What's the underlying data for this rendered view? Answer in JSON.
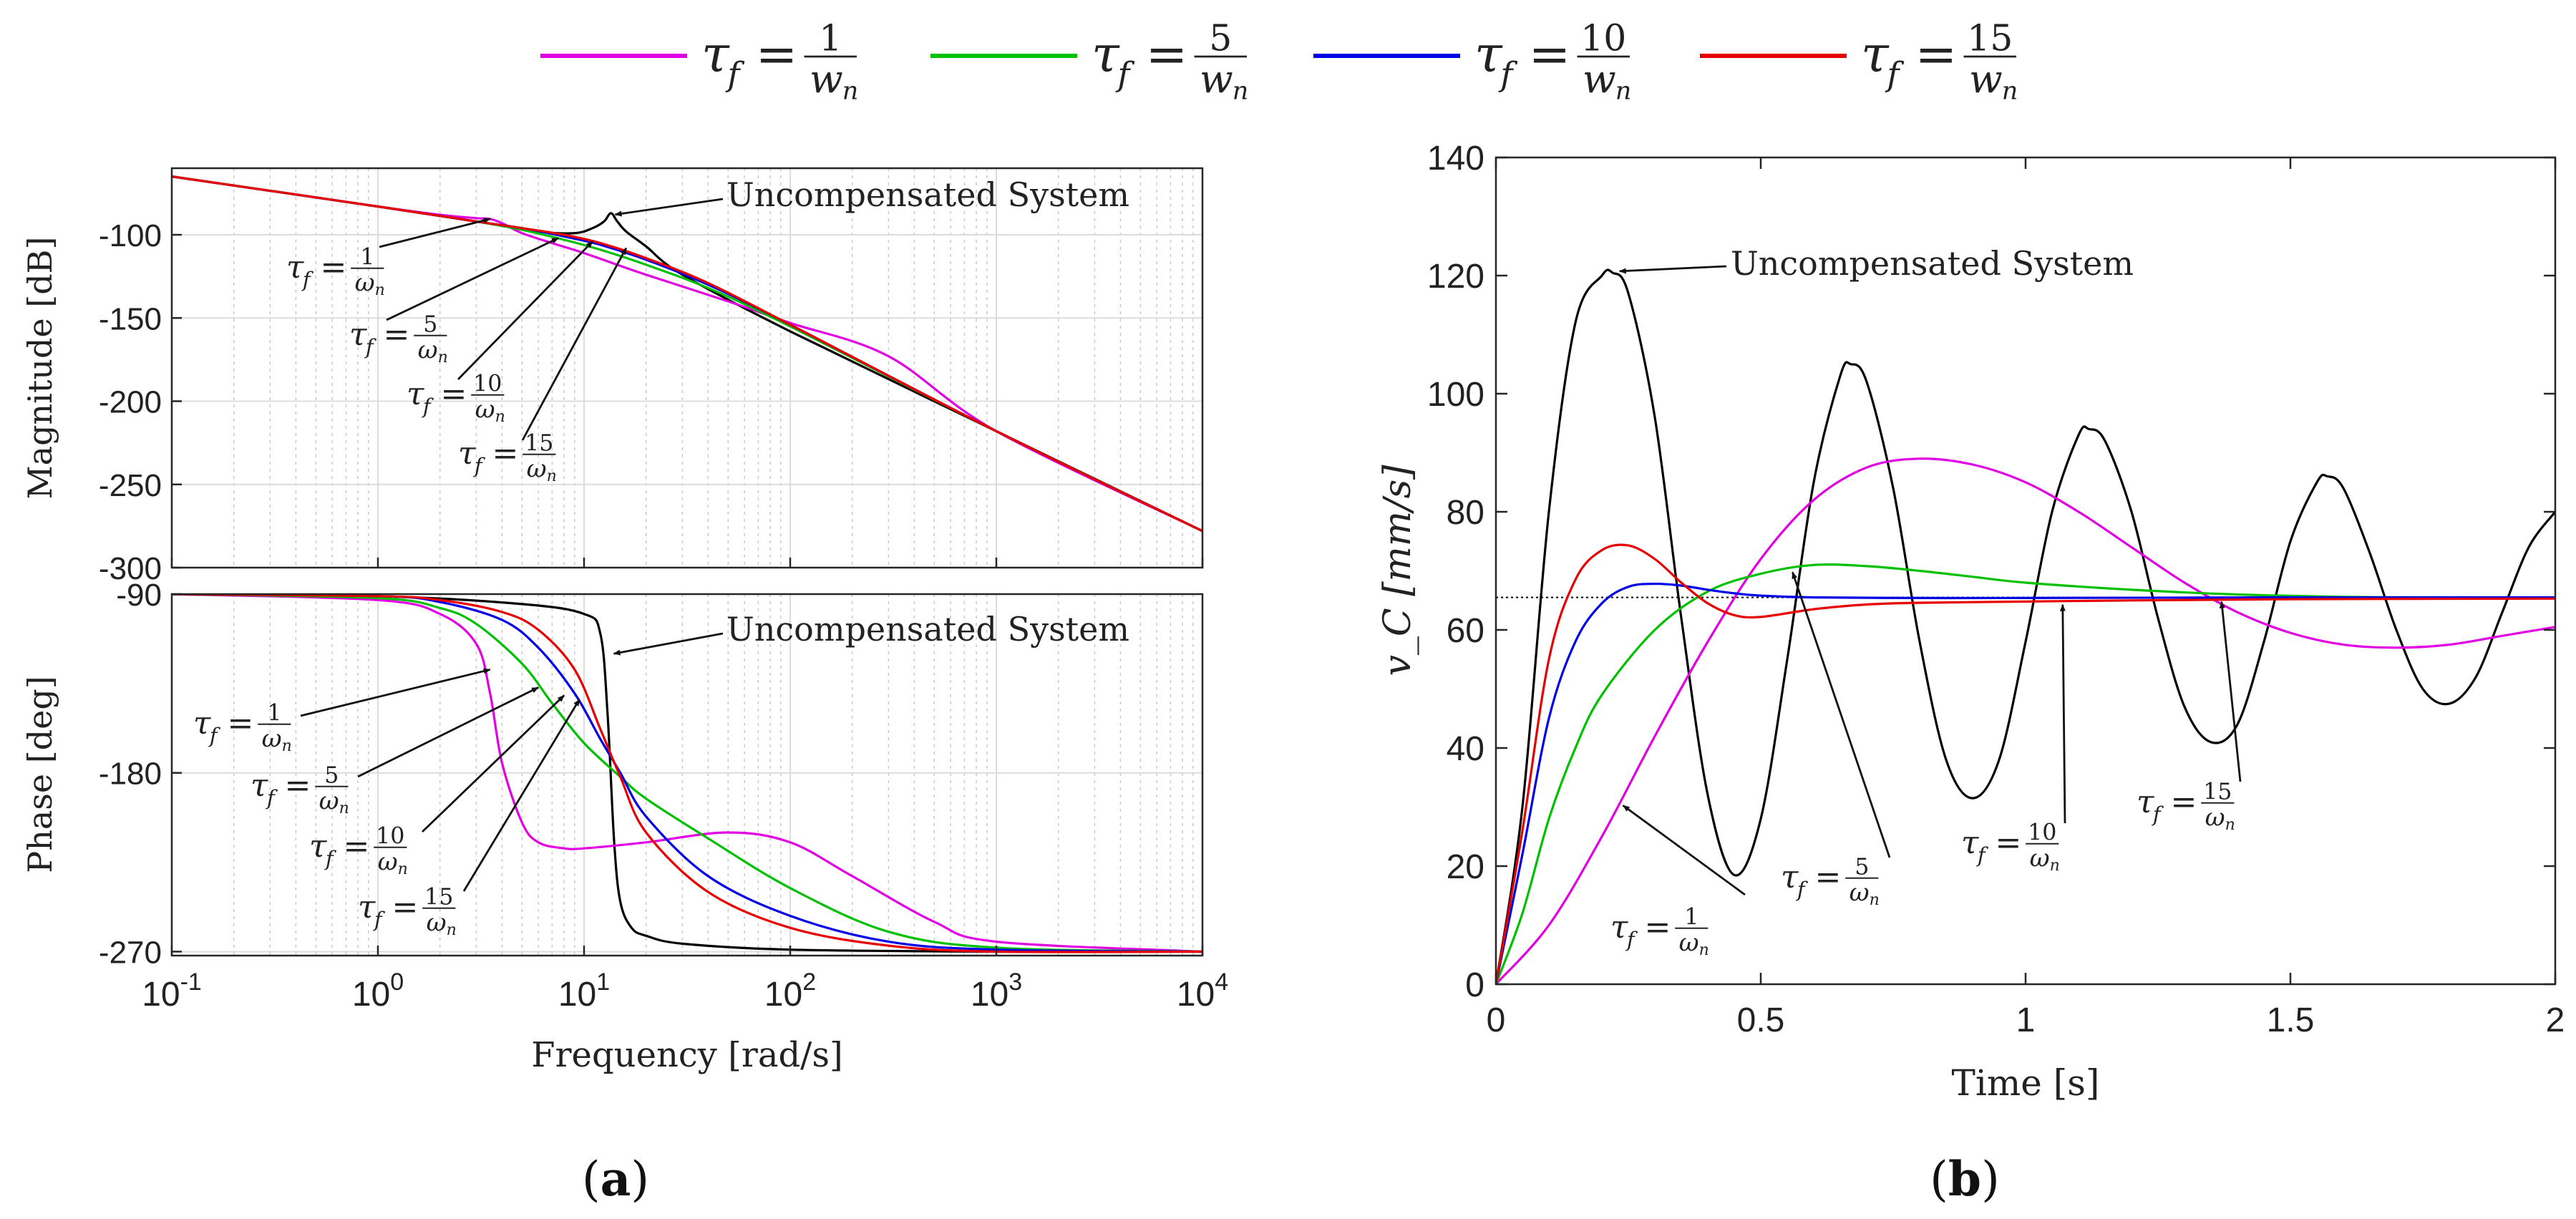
{
  "chart_data": [
    {
      "panel": "(a)",
      "type": "line",
      "subplot": "magnitude",
      "xscale": "log",
      "xlim": [
        0.1,
        10000
      ],
      "ylim": [
        -300,
        -60
      ],
      "yticks": [
        "-100",
        "-150",
        "-200",
        "-250",
        "-300"
      ],
      "ylabel": "Magnitude [dB]",
      "grid": true,
      "series": [
        {
          "name": "uncompensated",
          "color": "#000000",
          "x": [
            0.1,
            1,
            3,
            6,
            9,
            11,
            12.5,
            13.5,
            14.5,
            16,
            20,
            30,
            100,
            1000,
            10000
          ],
          "values": [
            -65,
            -83,
            -92,
            -98,
            -99,
            -96,
            -92,
            -87,
            -92,
            -98,
            -107,
            -124,
            -158,
            -218,
            -278
          ]
        },
        {
          "name": "tau_f = 1/w_n",
          "color": "#e100e1",
          "x": [
            0.1,
            1,
            2,
            3,
            3.5,
            4,
            5,
            7,
            10,
            20,
            50,
            100,
            300,
            1000,
            10000
          ],
          "values": [
            -65,
            -83,
            -88,
            -90,
            -90.5,
            -93,
            -99,
            -105,
            -111,
            -124,
            -140,
            -153,
            -173,
            -218,
            -278
          ]
        },
        {
          "name": "tau_f = 5/w_n",
          "color": "#00c000",
          "x": [
            0.1,
            1,
            3,
            5,
            8,
            12,
            20,
            40,
            100,
            1000,
            10000
          ],
          "values": [
            -65,
            -83,
            -92,
            -97,
            -103,
            -109,
            -118,
            -132,
            -155,
            -218,
            -278
          ]
        },
        {
          "name": "tau_f = 10/w_n",
          "color": "#0000e6",
          "x": [
            0.1,
            1,
            3,
            5,
            8,
            12,
            20,
            40,
            100,
            1000,
            10000
          ],
          "values": [
            -65,
            -83,
            -92,
            -96,
            -101,
            -106,
            -115,
            -130,
            -154,
            -218,
            -278
          ]
        },
        {
          "name": "tau_f = 15/w_n",
          "color": "#e60000",
          "x": [
            0.1,
            1,
            3,
            5,
            8,
            12,
            20,
            40,
            100,
            1000,
            10000
          ],
          "values": [
            -65,
            -83,
            -92,
            -96,
            -100,
            -105,
            -114,
            -129,
            -154,
            -218,
            -278
          ]
        }
      ],
      "annotations": [
        {
          "text": "Uncompensated System",
          "x": 13.5,
          "y": -87
        },
        {
          "tau": "1",
          "x": 3.5,
          "y": -90.5
        },
        {
          "tau": "5",
          "x": 7.5,
          "y": -102
        },
        {
          "tau": "10",
          "x": 11,
          "y": -104
        },
        {
          "tau": "15",
          "x": 16,
          "y": -108
        }
      ]
    },
    {
      "panel": "(a)",
      "type": "line",
      "subplot": "phase",
      "xscale": "log",
      "xlim": [
        0.1,
        10000
      ],
      "ylim": [
        -272,
        -90
      ],
      "yticks": [
        "-90",
        "-180",
        "-270"
      ],
      "xticks": [
        {
          "base": "10",
          "exp": "-1"
        },
        {
          "base": "10",
          "exp": "0"
        },
        {
          "base": "10",
          "exp": "1"
        },
        {
          "base": "10",
          "exp": "2"
        },
        {
          "base": "10",
          "exp": "3"
        },
        {
          "base": "10",
          "exp": "4"
        }
      ],
      "xlabel": "Frequency [rad/s]",
      "ylabel": "Phase [deg]",
      "grid": true,
      "series": [
        {
          "name": "uncompensated",
          "color": "#000000",
          "x": [
            0.1,
            1,
            5,
            10,
            12,
            13,
            14,
            15,
            17,
            20,
            30,
            100,
            1000,
            10000
          ],
          "values": [
            -90,
            -91,
            -95,
            -100,
            -110,
            -150,
            -215,
            -245,
            -258,
            -262,
            -266,
            -269,
            -270,
            -270
          ]
        },
        {
          "name": "tau_f = 1/w_n",
          "color": "#e100e1",
          "x": [
            0.1,
            1,
            2,
            3,
            3.5,
            4,
            5,
            6,
            8,
            10,
            20,
            50,
            100,
            200,
            500,
            1000,
            10000
          ],
          "values": [
            -90,
            -93,
            -100,
            -115,
            -140,
            -175,
            -205,
            -215,
            -218,
            -218,
            -215,
            -210,
            -215,
            -232,
            -255,
            -265,
            -270
          ]
        },
        {
          "name": "tau_f = 5/w_n",
          "color": "#00c000",
          "x": [
            0.1,
            1,
            2,
            3,
            5,
            7,
            10,
            15,
            20,
            40,
            100,
            300,
            1000,
            10000
          ],
          "values": [
            -90,
            -92,
            -97,
            -105,
            -125,
            -145,
            -165,
            -182,
            -193,
            -213,
            -238,
            -260,
            -268,
            -270
          ]
        },
        {
          "name": "tau_f = 10/w_n",
          "color": "#0000e6",
          "x": [
            0.1,
            1,
            2,
            4,
            6,
            9,
            12,
            15,
            20,
            40,
            100,
            300,
            1000,
            10000
          ],
          "values": [
            -90,
            -91,
            -94,
            -103,
            -117,
            -140,
            -163,
            -180,
            -202,
            -232,
            -252,
            -265,
            -269,
            -270
          ]
        },
        {
          "name": "tau_f = 15/w_n",
          "color": "#e60000",
          "x": [
            0.1,
            1,
            2,
            4,
            6,
            9,
            12,
            15,
            20,
            40,
            100,
            300,
            1000,
            10000
          ],
          "values": [
            -90,
            -91,
            -93,
            -99,
            -108,
            -128,
            -158,
            -182,
            -210,
            -240,
            -258,
            -267,
            -270,
            -270
          ]
        }
      ],
      "annotations": [
        {
          "text": "Uncompensated System",
          "x": 13.5,
          "y": -120
        },
        {
          "tau": "1",
          "x": 3.5,
          "y": -128
        },
        {
          "tau": "5",
          "x": 6,
          "y": -137
        },
        {
          "tau": "10",
          "x": 8,
          "y": -141
        },
        {
          "tau": "15",
          "x": 9.5,
          "y": -143
        }
      ]
    },
    {
      "panel": "(b)",
      "type": "line",
      "xlim": [
        0,
        2
      ],
      "ylim": [
        0,
        140
      ],
      "xticks": [
        "0",
        "0.5",
        "1",
        "1.5",
        "2"
      ],
      "yticks": [
        "0",
        "20",
        "40",
        "60",
        "80",
        "100",
        "120",
        "140"
      ],
      "xlabel": "Time [s]",
      "ylabel": "v_C [mm/s]",
      "grid": false,
      "reference_line": 65.5,
      "series": [
        {
          "name": "uncompensated",
          "color": "#000000",
          "x": [
            0,
            0.05,
            0.1,
            0.15,
            0.2,
            0.22,
            0.25,
            0.3,
            0.35,
            0.4,
            0.45,
            0.5,
            0.55,
            0.6,
            0.65,
            0.67,
            0.7,
            0.75,
            0.8,
            0.85,
            0.9,
            0.95,
            1.0,
            1.05,
            1.1,
            1.12,
            1.15,
            1.2,
            1.25,
            1.3,
            1.35,
            1.4,
            1.45,
            1.5,
            1.55,
            1.57,
            1.6,
            1.65,
            1.7,
            1.75,
            1.8,
            1.85,
            1.9,
            1.95,
            2.0
          ],
          "values": [
            0,
            30,
            80,
            112,
            120,
            120.5,
            117,
            96,
            62,
            32,
            18.5,
            28,
            55,
            85,
            103,
            105,
            102,
            84,
            58,
            38,
            31.5,
            38,
            58,
            80,
            93,
            94,
            92,
            80,
            62,
            47,
            41,
            44,
            58,
            75,
            85,
            86,
            84,
            73,
            60,
            50,
            47.5,
            52,
            63,
            74,
            80
          ]
        },
        {
          "name": "tau_f = 1/w_n",
          "color": "#e100e1",
          "x": [
            0,
            0.1,
            0.2,
            0.3,
            0.4,
            0.5,
            0.6,
            0.7,
            0.8,
            0.9,
            1.0,
            1.1,
            1.2,
            1.3,
            1.4,
            1.5,
            1.6,
            1.7,
            1.8,
            1.9,
            2.0
          ],
          "values": [
            0,
            10,
            25,
            42,
            58,
            72,
            82,
            87.5,
            89,
            88,
            85,
            80,
            74,
            68,
            63,
            59.5,
            57.5,
            57,
            57.5,
            59,
            60.5
          ]
        },
        {
          "name": "tau_f = 5/w_n",
          "color": "#00c000",
          "x": [
            0,
            0.05,
            0.1,
            0.15,
            0.2,
            0.3,
            0.4,
            0.5,
            0.6,
            0.7,
            0.8,
            0.9,
            1.0,
            1.2,
            1.4,
            1.6,
            1.8,
            2.0
          ],
          "values": [
            0,
            12,
            28,
            40,
            49,
            60,
            66.5,
            69.5,
            71,
            70.8,
            70,
            69,
            68,
            66.8,
            66,
            65.6,
            65.5,
            65.5
          ]
        },
        {
          "name": "tau_f = 10/w_n",
          "color": "#0000e6",
          "x": [
            0,
            0.05,
            0.1,
            0.15,
            0.2,
            0.25,
            0.3,
            0.35,
            0.4,
            0.45,
            0.5,
            0.6,
            0.8,
            1.0,
            1.5,
            2.0
          ],
          "values": [
            0,
            22,
            45,
            58,
            64.5,
            67.3,
            67.8,
            67.5,
            66.8,
            66.2,
            65.8,
            65.5,
            65.4,
            65.4,
            65.5,
            65.5
          ]
        },
        {
          "name": "tau_f = 15/w_n",
          "color": "#e60000",
          "x": [
            0,
            0.05,
            0.1,
            0.15,
            0.2,
            0.25,
            0.3,
            0.35,
            0.4,
            0.45,
            0.5,
            0.6,
            0.7,
            0.8,
            1.0,
            1.2,
            1.5,
            2.0
          ],
          "values": [
            0,
            26,
            55,
            68.5,
            73.5,
            74.3,
            72,
            68,
            64.5,
            62.5,
            62.2,
            63.5,
            64.3,
            64.6,
            64.8,
            65,
            65.2,
            65.3
          ]
        }
      ],
      "annotations": [
        {
          "text": "Uncompensated System",
          "x": 0.22,
          "y": 120.5
        },
        {
          "tau": "1",
          "x": 0.24,
          "y": 31
        },
        {
          "tau": "5",
          "x": 0.56,
          "y": 70.5
        },
        {
          "tau": "10",
          "x": 1.07,
          "y": 65
        },
        {
          "tau": "15",
          "x": 1.37,
          "y": 65.5
        }
      ]
    }
  ],
  "legend": {
    "placement": "top-center",
    "entries": [
      {
        "color": "#e100e1",
        "num": "1",
        "den": "w",
        "sub": "n"
      },
      {
        "color": "#00c000",
        "num": "5",
        "den": "w",
        "sub": "n"
      },
      {
        "color": "#0000e6",
        "num": "10",
        "den": "w",
        "sub": "n"
      },
      {
        "color": "#e60000",
        "num": "15",
        "den": "w",
        "sub": "n"
      }
    ]
  },
  "tau_label": {
    "symbol": "τ",
    "sub": "f",
    "eq": "=",
    "den_symbol": "ω",
    "den_sub": "n"
  },
  "colors": {
    "uncompensated": "#000000",
    "axis": "#262626",
    "grid": "#dcdcdc",
    "reference": "#000000"
  },
  "panel_labels": {
    "a": "a",
    "b": "b"
  },
  "uncompensated_label": "Uncompensated System"
}
